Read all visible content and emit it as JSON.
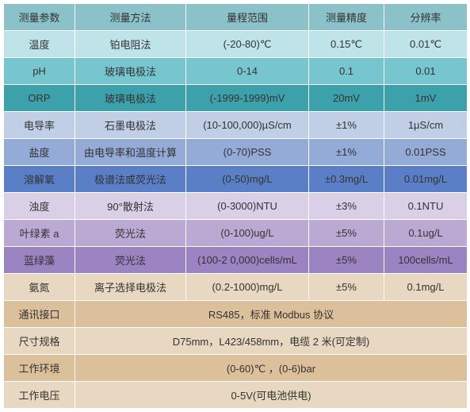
{
  "header": {
    "cols": [
      "测量参数",
      "测量方法",
      "量程范围",
      "测量精度",
      "分辨率"
    ],
    "bg": "#8bc2ca",
    "fontsize": 13
  },
  "rows": [
    {
      "cells": [
        "温度",
        "铂电阻法",
        "(-20-80)℃",
        "0.15℃",
        "0.01℃"
      ],
      "bg": "#bee3e8"
    },
    {
      "cells": [
        "pH",
        "玻璃电极法",
        "0-14",
        "0.1",
        "0.01"
      ],
      "bg": "#76c5cf"
    },
    {
      "cells": [
        "ORP",
        "玻璃电极法",
        "(-1999-1999)mV",
        "20mV",
        "1mV"
      ],
      "bg": "#3da1ab"
    },
    {
      "cells": [
        "电导率",
        "石墨电极法",
        "(10-100,000)µS/cm",
        "±1%",
        "1µS/cm"
      ],
      "bg": "#c1cfe6"
    },
    {
      "cells": [
        "盐度",
        "由电导率和温度计算",
        "(0-70)PSS",
        "±1%",
        "0.01PSS"
      ],
      "bg": "#93abd6"
    },
    {
      "cells": [
        "溶解氧",
        "极谱法或荧光法",
        "(0-50)mg/L",
        "±0.3mg/L",
        "0.01mg/L"
      ],
      "bg": "#5a7fc7"
    },
    {
      "cells": [
        "浊度",
        "90°散射法",
        "(0-3000)NTU",
        "±3%",
        "0.1NTU"
      ],
      "bg": "#d9cfe6"
    },
    {
      "cells": [
        "叶绿素 a",
        "荧光法",
        "(0-100)ug/L",
        "±5%",
        "0.1ug/L"
      ],
      "bg": "#bba9d4"
    },
    {
      "cells": [
        "蓝绿藻",
        "荧光法",
        "(100-2 0,000)cells/mL",
        "±5%",
        "100cells/mL"
      ],
      "bg": "#9c83c2"
    },
    {
      "cells": [
        "氨氮",
        "离子选择电极法",
        "(0.2-1000)mg/L",
        "±5%",
        "0.1mg/L"
      ],
      "bg": "#e8d7c1"
    }
  ],
  "footer_rows": [
    {
      "label": "通讯接口",
      "value": "RS485，标准 Modbus 协议",
      "bg": "#dcc09b"
    },
    {
      "label": "尺寸规格",
      "value": "D75mm，L423/458mm，电缆 2 米(可定制)",
      "bg": "#e8d7c1"
    },
    {
      "label": "工作环境",
      "value": "(0-60)℃ ，(0-6)bar",
      "bg": "#dcc09b"
    },
    {
      "label": "工作电压",
      "value": "0-5V(可电池供电)",
      "bg": "#e8d7c1"
    }
  ],
  "footer_label_bg": "#e8d7c1",
  "border_color": "#ffffff"
}
